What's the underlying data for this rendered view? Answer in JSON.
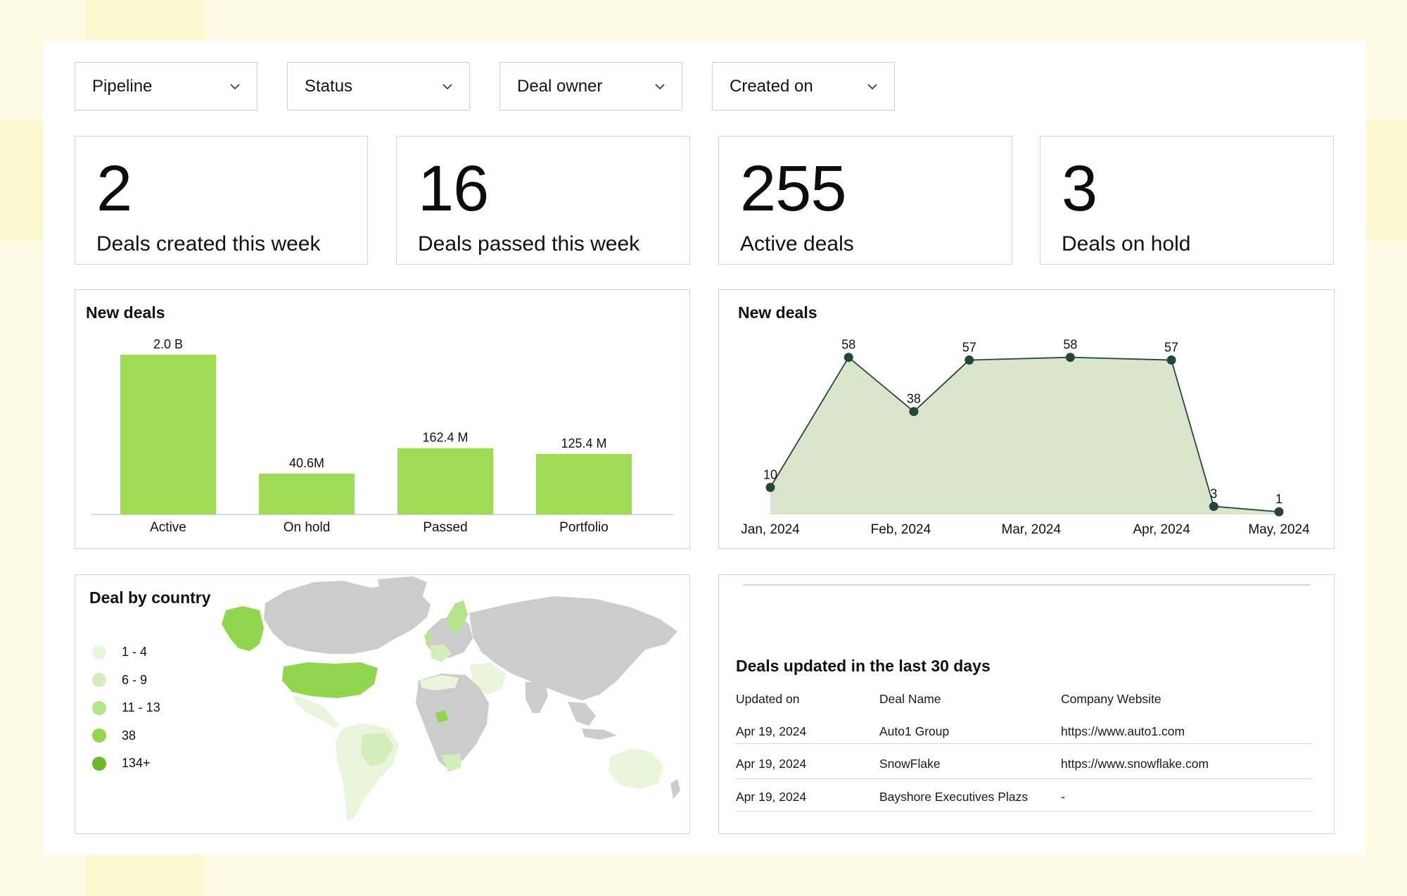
{
  "filters": [
    {
      "label": "Pipeline"
    },
    {
      "label": "Status"
    },
    {
      "label": "Deal owner"
    },
    {
      "label": "Created on"
    }
  ],
  "kpis": [
    {
      "value": "2",
      "label": "Deals created this week"
    },
    {
      "value": "16",
      "label": "Deals passed this week"
    },
    {
      "value": "255",
      "label": "Active deals"
    },
    {
      "value": "3",
      "label": "Deals  on hold"
    }
  ],
  "bar_card": {
    "title": "New deals"
  },
  "line_card": {
    "title": "New deals"
  },
  "map_card": {
    "title": "Deal by country",
    "legend": [
      {
        "label": "1 - 4",
        "color": "#eaf6dc"
      },
      {
        "label": "6 - 9",
        "color": "#d4eebb"
      },
      {
        "label": "11 - 13",
        "color": "#b6e38d"
      },
      {
        "label": "38",
        "color": "#92d650"
      },
      {
        "label": "134+",
        "color": "#6cb82c"
      }
    ],
    "land_color": "#cccccc"
  },
  "table_card": {
    "title": "Deals updated in the last 30 days",
    "headers": [
      "Updated on",
      "Deal Name",
      "Company Website"
    ],
    "rows": [
      [
        "Apr 19, 2024",
        "Auto1 Group",
        "https://www.auto1.com"
      ],
      [
        "Apr 19, 2024",
        "SnowFlake",
        "https://www.snowflake.com"
      ],
      [
        "Apr 19, 2024",
        "Bayshore Executives Plazs",
        "-"
      ]
    ]
  },
  "colors": {
    "bar": "#9edc55",
    "line": "#25473a",
    "area": "#d9e6cc"
  },
  "chart_data": [
    {
      "type": "bar",
      "categories": [
        "Active",
        "On hold",
        "Passed",
        "Portfolio"
      ],
      "values": [
        2000,
        40.6,
        162.4,
        125.4
      ],
      "value_labels": [
        "2.0 B",
        "40.6M",
        "162.4 M",
        "125.4 M"
      ],
      "title": "New deals",
      "unit": "millions"
    },
    {
      "type": "area",
      "x": [
        0,
        1.2,
        2.2,
        3.05,
        4.6,
        6.15,
        6.8,
        7.8
      ],
      "values": [
        10,
        58,
        38,
        57,
        58,
        57,
        3,
        1
      ],
      "tick_labels": [
        "Jan, 2024",
        "Feb, 2024",
        "Mar, 2024",
        "Apr, 2024",
        "May, 2024"
      ],
      "tick_positions": [
        0,
        2,
        4,
        6,
        7.8
      ],
      "ylim": [
        0,
        60
      ],
      "title": "New deals"
    }
  ]
}
